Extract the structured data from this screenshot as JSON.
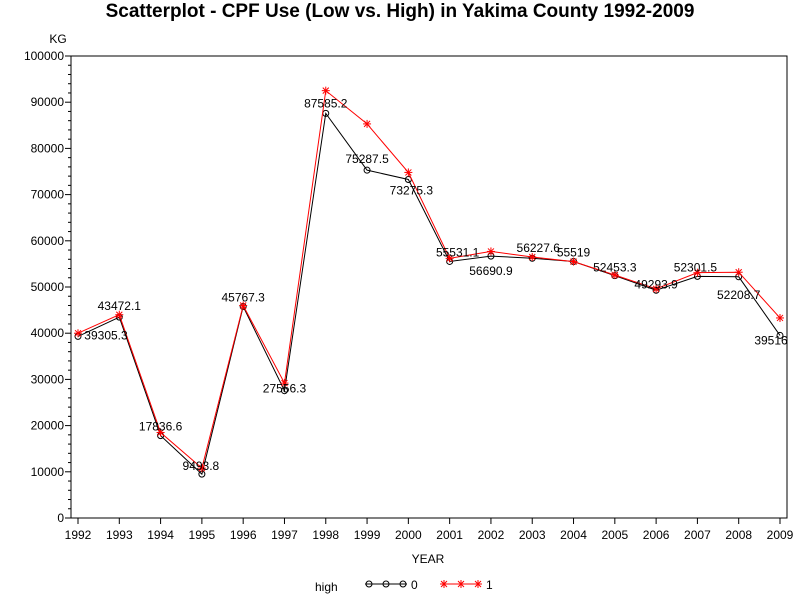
{
  "chart_data": {
    "type": "line",
    "title": "Scatterplot - CPF Use (Low vs. High) in Yakima County 1992-2009",
    "xlabel": "YEAR",
    "ylabel": "KG",
    "xlim": [
      1992,
      2009
    ],
    "ylim": [
      0,
      100000
    ],
    "x": [
      1992,
      1993,
      1994,
      1995,
      1996,
      1997,
      1998,
      1999,
      2000,
      2001,
      2002,
      2003,
      2004,
      2005,
      2006,
      2007,
      2008,
      2009
    ],
    "x_tick_labels": [
      "1992",
      "1993",
      "1994",
      "1995",
      "1996",
      "1997",
      "1998",
      "1999",
      "2000",
      "2001",
      "2002",
      "2003",
      "2004",
      "2005",
      "2006",
      "2007",
      "2008",
      "2009"
    ],
    "y_tick_labels": [
      "0",
      "10000",
      "20000",
      "30000",
      "40000",
      "50000",
      "60000",
      "70000",
      "80000",
      "90000",
      "100000"
    ],
    "y_ticks": [
      0,
      10000,
      20000,
      30000,
      40000,
      50000,
      60000,
      70000,
      80000,
      90000,
      100000
    ],
    "legend": {
      "title": "high",
      "placement": "bottom-center",
      "entries": [
        "0",
        "1"
      ]
    },
    "series": [
      {
        "name": "0",
        "color": "#000000",
        "marker": "circle",
        "values": [
          39305.3,
          43472.1,
          17836.6,
          9493.8,
          45767.3,
          27556.3,
          87585.2,
          75287.5,
          73275.3,
          55531.1,
          56690.9,
          56227.6,
          55519,
          52453.3,
          49293.9,
          52301.5,
          52208.7,
          39516
        ]
      },
      {
        "name": "1",
        "color": "#ff0000",
        "marker": "star",
        "values": [
          40000,
          44000,
          18500,
          10800,
          46000,
          29200,
          92500,
          85300,
          74800,
          56200,
          57700,
          56500,
          55500,
          52600,
          49600,
          53100,
          53200,
          43300
        ]
      }
    ],
    "data_labels": [
      {
        "x": 1992,
        "y": 39305.3,
        "text": "39305.3"
      },
      {
        "x": 1993,
        "y": 43472.1,
        "text": "43472.1"
      },
      {
        "x": 1994,
        "y": 17836.6,
        "text": "17836.6"
      },
      {
        "x": 1995,
        "y": 9493.8,
        "text": "9493.8"
      },
      {
        "x": 1996,
        "y": 45767.3,
        "text": "45767.3"
      },
      {
        "x": 1997,
        "y": 27556.3,
        "text": "27556.3"
      },
      {
        "x": 1998,
        "y": 87585.2,
        "text": "87585.2"
      },
      {
        "x": 1999,
        "y": 75287.5,
        "text": "75287.5"
      },
      {
        "x": 2000,
        "y": 73275.3,
        "text": "73275.3"
      },
      {
        "x": 2001,
        "y": 55531.1,
        "text": "55531.1"
      },
      {
        "x": 2002,
        "y": 56690.9,
        "text": "56690.9"
      },
      {
        "x": 2003,
        "y": 56227.6,
        "text": "56227.6"
      },
      {
        "x": 2004,
        "y": 55519,
        "text": "55519"
      },
      {
        "x": 2005,
        "y": 52453.3,
        "text": "52453.3"
      },
      {
        "x": 2006,
        "y": 49293.9,
        "text": "49293.9"
      },
      {
        "x": 2007,
        "y": 52301.5,
        "text": "52301.5"
      },
      {
        "x": 2008,
        "y": 52208.7,
        "text": "52208.7"
      },
      {
        "x": 2009,
        "y": 39516,
        "text": "39516"
      }
    ],
    "grid": false
  }
}
